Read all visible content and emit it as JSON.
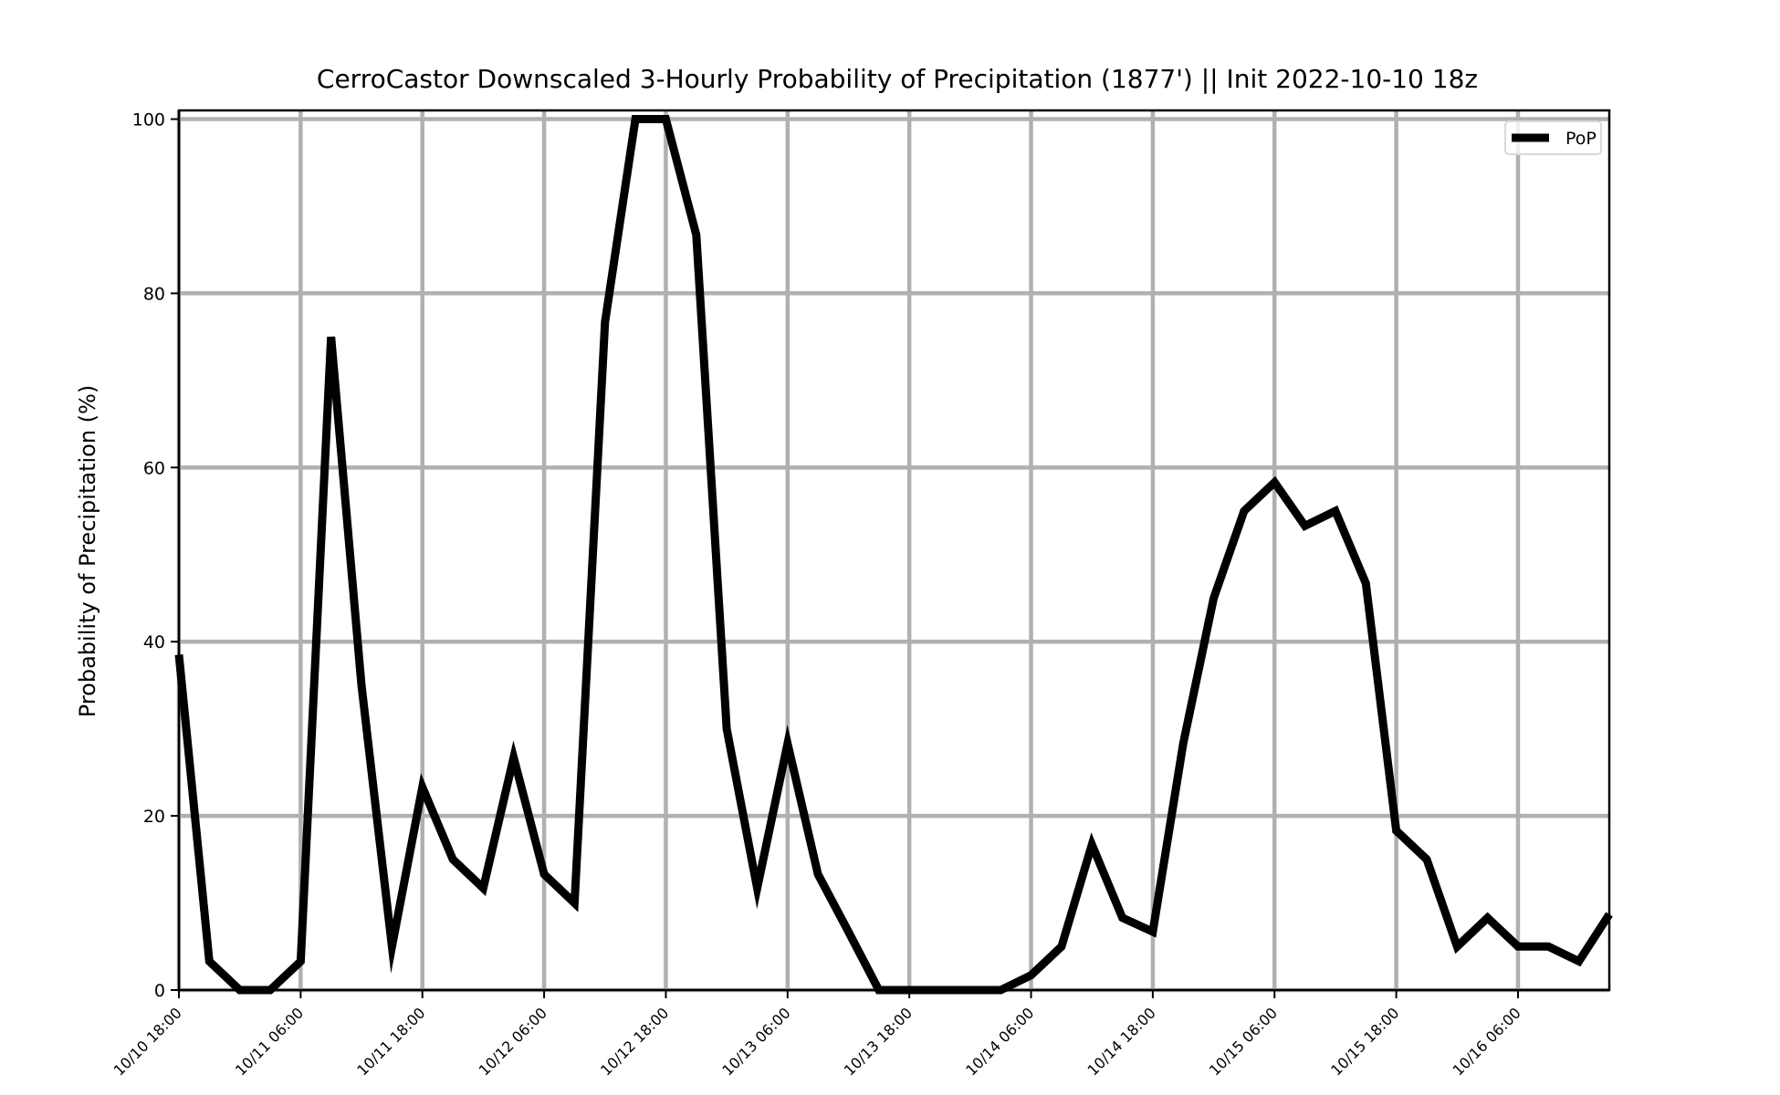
{
  "chart_data": {
    "type": "line",
    "title": "CerroCastor Downscaled 3-Hourly Probability of Precipitation (1877') || Init 2022-10-10 18z",
    "xlabel": "",
    "ylabel": "Probability of Precipitation (%)",
    "ylim": [
      0,
      101
    ],
    "y_ticks": [
      0,
      20,
      40,
      60,
      80,
      100
    ],
    "x_range_hours": [
      0,
      141
    ],
    "x_tick_labels": [
      "10/10 18:00",
      "10/11 06:00",
      "10/11 18:00",
      "10/12 06:00",
      "10/12 18:00",
      "10/13 06:00",
      "10/13 18:00",
      "10/14 06:00",
      "10/14 18:00",
      "10/15 06:00",
      "10/15 18:00",
      "10/16 06:00"
    ],
    "x_tick_hours": [
      0,
      12,
      24,
      36,
      48,
      60,
      72,
      84,
      96,
      108,
      120,
      132
    ],
    "grid": true,
    "legend_position": "top-right",
    "series": [
      {
        "name": "PoP",
        "color": "#000000",
        "x_hours": [
          0,
          3,
          6,
          9,
          12,
          15,
          18,
          21,
          24,
          27,
          30,
          33,
          36,
          39,
          42,
          45,
          48,
          51,
          54,
          57,
          60,
          63,
          66,
          69,
          72,
          75,
          78,
          81,
          84,
          87,
          90,
          93,
          96,
          99,
          102,
          105,
          108,
          111,
          114,
          117,
          120,
          123,
          126,
          129,
          132,
          135,
          138,
          141
        ],
        "values": [
          38.5,
          3.3,
          0,
          0,
          3.3,
          75,
          35,
          5,
          23.3,
          15,
          11.7,
          26.7,
          13.3,
          10,
          76.7,
          100,
          100,
          86.7,
          30,
          11.7,
          28.3,
          13.3,
          6.7,
          0,
          0,
          0,
          0,
          0,
          1.7,
          5,
          16.7,
          8.3,
          6.7,
          28.3,
          45,
          55,
          58.3,
          53.3,
          55,
          46.7,
          18.3,
          15,
          5,
          8.3,
          5,
          5,
          3.3,
          8.7
        ]
      }
    ]
  }
}
